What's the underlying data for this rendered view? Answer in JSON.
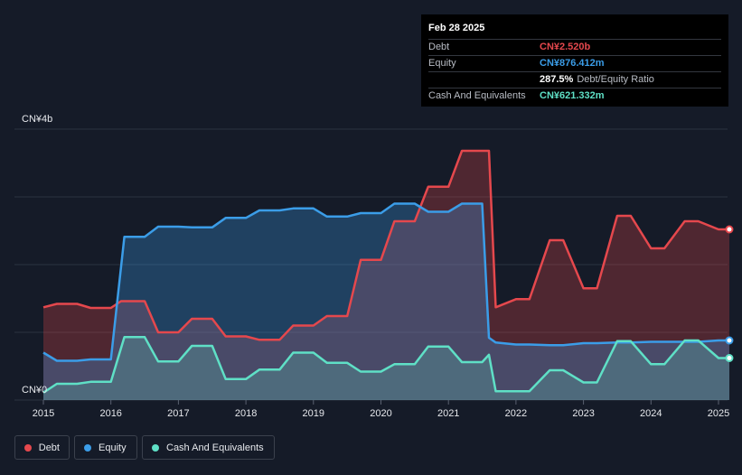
{
  "tooltip": {
    "date": "Feb 28 2025",
    "rows": [
      {
        "label": "Debt",
        "value": "CN¥2.520b",
        "color": "#e5484d"
      },
      {
        "label": "Equity",
        "value": "CN¥876.412m",
        "color": "#3b9de8"
      },
      {
        "label": "",
        "value": "287.5%",
        "suffix": "Debt/Equity Ratio"
      },
      {
        "label": "Cash And Equivalents",
        "value": "CN¥621.332m",
        "color": "#5fe0c6"
      }
    ]
  },
  "legend": {
    "debt": "Debt",
    "equity": "Equity",
    "cash": "Cash And Equivalents"
  },
  "chart_data": {
    "type": "area",
    "y_unit": "CN¥ billions",
    "ylim": [
      0,
      4
    ],
    "y_tick_labels": [
      {
        "value": 4,
        "label": "CN¥4b"
      },
      {
        "value": 0,
        "label": "CN¥0"
      }
    ],
    "x_ticks": [
      "2015",
      "2016",
      "2017",
      "2018",
      "2019",
      "2020",
      "2021",
      "2022",
      "2023",
      "2024",
      "2025"
    ],
    "grid": true,
    "legend_position": "bottom-left",
    "colors": {
      "debt": "#e5484d",
      "equity": "#3b9de8",
      "cash": "#5fe0c6"
    },
    "series": [
      {
        "name": "Debt",
        "key": "debt",
        "x": [
          2015.0,
          2015.2,
          2015.5,
          2015.7,
          2016.0,
          2016.15,
          2016.5,
          2016.7,
          2017.0,
          2017.2,
          2017.5,
          2017.7,
          2018.0,
          2018.2,
          2018.5,
          2018.7,
          2019.0,
          2019.2,
          2019.5,
          2019.7,
          2020.0,
          2020.2,
          2020.5,
          2020.7,
          2021.0,
          2021.2,
          2021.5,
          2021.6,
          2021.7,
          2022.0,
          2022.2,
          2022.5,
          2022.7,
          2023.0,
          2023.2,
          2023.5,
          2023.7,
          2024.0,
          2024.2,
          2024.5,
          2024.7,
          2025.0,
          2025.16
        ],
        "y": [
          1.37,
          1.42,
          1.42,
          1.36,
          1.36,
          1.46,
          1.46,
          1.0,
          1.0,
          1.2,
          1.2,
          0.94,
          0.94,
          0.89,
          0.89,
          1.1,
          1.1,
          1.24,
          1.24,
          2.07,
          2.07,
          2.64,
          2.64,
          3.15,
          3.15,
          3.68,
          3.68,
          3.68,
          1.37,
          1.49,
          1.49,
          2.36,
          2.36,
          1.65,
          1.65,
          2.72,
          2.72,
          2.24,
          2.24,
          2.64,
          2.64,
          2.52,
          2.52
        ]
      },
      {
        "name": "Equity",
        "key": "equity",
        "x": [
          2015.0,
          2015.2,
          2015.5,
          2015.7,
          2016.0,
          2016.2,
          2016.5,
          2016.7,
          2017.0,
          2017.2,
          2017.5,
          2017.7,
          2018.0,
          2018.2,
          2018.5,
          2018.7,
          2019.0,
          2019.2,
          2019.5,
          2019.7,
          2020.0,
          2020.2,
          2020.5,
          2020.7,
          2021.0,
          2021.2,
          2021.5,
          2021.6,
          2021.7,
          2022.0,
          2022.2,
          2022.5,
          2022.7,
          2023.0,
          2023.2,
          2023.5,
          2023.7,
          2024.0,
          2024.2,
          2024.5,
          2024.7,
          2025.0,
          2025.16
        ],
        "y": [
          0.7,
          0.58,
          0.58,
          0.6,
          0.6,
          2.41,
          2.41,
          2.56,
          2.56,
          2.55,
          2.55,
          2.69,
          2.69,
          2.8,
          2.8,
          2.83,
          2.83,
          2.71,
          2.71,
          2.76,
          2.76,
          2.9,
          2.9,
          2.78,
          2.78,
          2.9,
          2.9,
          0.92,
          0.85,
          0.82,
          0.82,
          0.81,
          0.81,
          0.84,
          0.84,
          0.85,
          0.85,
          0.86,
          0.86,
          0.86,
          0.86,
          0.88,
          0.88
        ]
      },
      {
        "name": "Cash And Equivalents",
        "key": "cash",
        "x": [
          2015.0,
          2015.2,
          2015.5,
          2015.7,
          2016.0,
          2016.2,
          2016.5,
          2016.7,
          2017.0,
          2017.2,
          2017.5,
          2017.7,
          2018.0,
          2018.2,
          2018.5,
          2018.7,
          2019.0,
          2019.2,
          2019.5,
          2019.7,
          2020.0,
          2020.2,
          2020.5,
          2020.7,
          2021.0,
          2021.2,
          2021.5,
          2021.6,
          2021.7,
          2022.0,
          2022.2,
          2022.5,
          2022.7,
          2023.0,
          2023.2,
          2023.5,
          2023.7,
          2024.0,
          2024.2,
          2024.5,
          2024.7,
          2025.0,
          2025.16
        ],
        "y": [
          0.11,
          0.24,
          0.24,
          0.27,
          0.27,
          0.93,
          0.93,
          0.57,
          0.57,
          0.8,
          0.8,
          0.31,
          0.31,
          0.45,
          0.45,
          0.7,
          0.7,
          0.55,
          0.55,
          0.42,
          0.42,
          0.53,
          0.53,
          0.79,
          0.79,
          0.56,
          0.56,
          0.67,
          0.13,
          0.13,
          0.13,
          0.44,
          0.44,
          0.26,
          0.26,
          0.87,
          0.87,
          0.53,
          0.53,
          0.88,
          0.88,
          0.62,
          0.62
        ]
      }
    ]
  }
}
